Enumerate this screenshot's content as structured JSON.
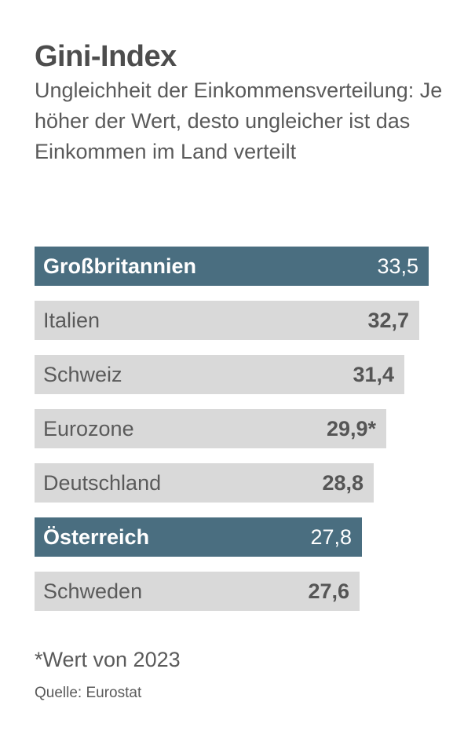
{
  "title": "Gini-Index",
  "subtitle": "Ungleichheit der Einkommensverteilung: Je höher der Wert, desto ungleicher ist das Einkommen im Land verteilt",
  "footnote": "*Wert von 2023",
  "source": "Quelle: Eurostat",
  "colors": {
    "highlight": "#4a6e80",
    "bar": "#d9d9d9"
  },
  "chart_data": {
    "type": "bar",
    "orientation": "horizontal",
    "title": "Gini-Index",
    "categories": [
      "Großbritannien",
      "Italien",
      "Schweiz",
      "Eurozone",
      "Deutschland",
      "Österreich",
      "Schweden"
    ],
    "values": [
      33.5,
      32.7,
      31.4,
      29.9,
      28.8,
      27.8,
      27.6
    ],
    "value_labels": [
      "33,5",
      "32,7",
      "31,4",
      "29,9*",
      "28,8",
      "27,8",
      "27,6"
    ],
    "highlighted": [
      true,
      false,
      false,
      false,
      false,
      true,
      false
    ],
    "xlim": [
      0,
      33.5
    ],
    "grid": false,
    "legend": "none"
  }
}
